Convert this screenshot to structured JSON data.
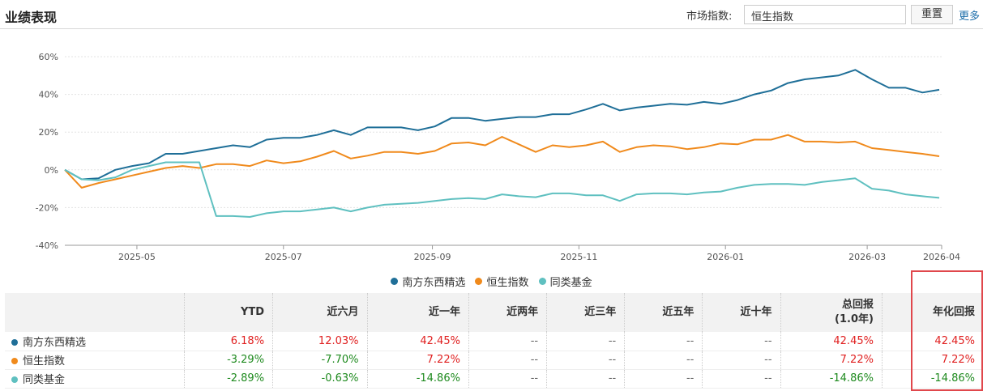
{
  "header": {
    "title": "业绩表现",
    "index_label": "市场指数:",
    "index_value": "恒生指数",
    "reset_label": "重置",
    "more_label": "更多"
  },
  "chart_data": {
    "type": "line",
    "title": "",
    "xlabel": "",
    "ylabel": "",
    "ylim": [
      -40,
      60
    ],
    "yticks": [
      "60%",
      "40%",
      "20%",
      "0%",
      "-20%",
      "-40%"
    ],
    "xticks": [
      "2025-05",
      "2025-07",
      "2025-09",
      "2025-11",
      "2026-01",
      "2026-03",
      "2026-04"
    ],
    "grid": true,
    "legend_position": "bottom",
    "x": [
      "2025-04-01",
      "2025-04-08",
      "2025-04-15",
      "2025-04-22",
      "2025-04-29",
      "2025-05-06",
      "2025-05-13",
      "2025-05-20",
      "2025-05-27",
      "2025-06-03",
      "2025-06-10",
      "2025-06-17",
      "2025-06-24",
      "2025-07-01",
      "2025-07-08",
      "2025-07-15",
      "2025-07-22",
      "2025-07-29",
      "2025-08-05",
      "2025-08-12",
      "2025-08-19",
      "2025-08-26",
      "2025-09-02",
      "2025-09-09",
      "2025-09-16",
      "2025-09-23",
      "2025-09-30",
      "2025-10-07",
      "2025-10-14",
      "2025-10-21",
      "2025-10-28",
      "2025-11-04",
      "2025-11-11",
      "2025-11-18",
      "2025-11-25",
      "2025-12-02",
      "2025-12-09",
      "2025-12-16",
      "2025-12-23",
      "2025-12-30",
      "2026-01-06",
      "2026-01-13",
      "2026-01-20",
      "2026-01-27",
      "2026-02-03",
      "2026-02-10",
      "2026-02-17",
      "2026-02-24",
      "2026-03-03",
      "2026-03-10",
      "2026-03-17",
      "2026-03-24",
      "2026-03-31"
    ],
    "series": [
      {
        "name": "南方东西精选",
        "color": "#1f6f98",
        "values": [
          0,
          -5,
          -4.5,
          0,
          2,
          3.5,
          8.5,
          8.5,
          10,
          11.5,
          13,
          12,
          16,
          17,
          17,
          18.5,
          21,
          18.5,
          22.5,
          22.5,
          22.5,
          21,
          23,
          27.5,
          27.5,
          26,
          27,
          28,
          28,
          29.5,
          29.5,
          32,
          35,
          31.5,
          33,
          34,
          35,
          34.5,
          36,
          35,
          37,
          40,
          42,
          46,
          48,
          49,
          50,
          53,
          48,
          43.5,
          43.5,
          41,
          42.45
        ]
      },
      {
        "name": "恒生指数",
        "color": "#f08a1c",
        "values": [
          0,
          -9.5,
          -7,
          -5,
          -3,
          -1,
          1,
          2,
          1,
          3,
          3,
          2,
          5,
          3.5,
          4.5,
          7,
          10,
          6,
          7.5,
          9.5,
          9.5,
          8.5,
          10,
          14,
          14.5,
          13,
          17.5,
          13.5,
          9.5,
          13,
          12,
          13,
          15,
          9.5,
          12,
          13,
          12.5,
          11,
          12,
          14,
          13.5,
          16,
          16,
          18.5,
          15,
          15,
          14.5,
          15,
          11.5,
          10.5,
          9.5,
          8.5,
          7.22
        ]
      },
      {
        "name": "同类基金",
        "color": "#5fc0c0",
        "values": [
          0,
          -5,
          -5.5,
          -4,
          0,
          2,
          4,
          4,
          4,
          -24.5,
          -24.5,
          -25,
          -23,
          -22,
          -22,
          -21,
          -20,
          -22,
          -20,
          -18.5,
          -18,
          -17.5,
          -16.5,
          -15.5,
          -15,
          -15.5,
          -13,
          -14,
          -14.5,
          -12.5,
          -12.5,
          -13.5,
          -13.5,
          -16.5,
          -13,
          -12.5,
          -12.5,
          -13,
          -12,
          -11.5,
          -9.5,
          -8,
          -7.5,
          -7.5,
          -8,
          -6.5,
          -5.5,
          -4.5,
          -10,
          -11,
          -13,
          -14,
          -14.86
        ]
      }
    ]
  },
  "table": {
    "columns": [
      "",
      "YTD",
      "近六月",
      "近一年",
      "近两年",
      "近三年",
      "近五年",
      "近十年",
      "总回报\n(1.0年)",
      "年化回报"
    ],
    "rows": [
      {
        "name": "南方东西精选",
        "color": "#1f6f98",
        "values": [
          "6.18%",
          "12.03%",
          "42.45%",
          "--",
          "--",
          "--",
          "--",
          "42.45%",
          "42.45%"
        ]
      },
      {
        "name": "恒生指数",
        "color": "#f08a1c",
        "values": [
          "-3.29%",
          "-7.70%",
          "7.22%",
          "--",
          "--",
          "--",
          "--",
          "7.22%",
          "7.22%"
        ]
      },
      {
        "name": "同类基金",
        "color": "#5fc0c0",
        "values": [
          "-2.89%",
          "-0.63%",
          "-14.86%",
          "--",
          "--",
          "--",
          "--",
          "-14.86%",
          "-14.86%"
        ]
      }
    ]
  }
}
